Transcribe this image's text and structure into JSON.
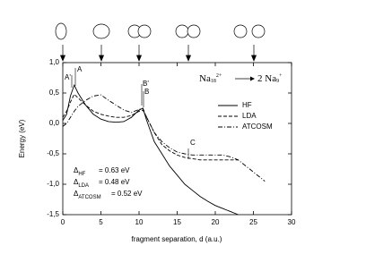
{
  "chart_data": {
    "type": "line",
    "x_label": "fragment separation, d (a.u.)",
    "y_label": "Energy (eV)",
    "x": [
      0,
      0.5,
      1,
      1.5,
      2,
      3,
      4,
      5,
      6,
      7,
      8,
      9,
      10,
      10.5,
      11,
      12,
      13,
      14,
      15,
      16,
      17,
      18,
      19,
      20,
      21,
      22,
      23,
      24,
      25,
      26,
      26.5
    ],
    "series": [
      {
        "name": "HF",
        "color": "#000000",
        "dash": "solid",
        "values": [
          0.05,
          0.15,
          0.45,
          0.63,
          0.5,
          0.3,
          0.15,
          0.07,
          0.03,
          0.02,
          0.03,
          0.1,
          0.22,
          0.25,
          0.05,
          -0.3,
          -0.5,
          -0.7,
          -0.85,
          -1.0,
          -1.1,
          -1.2,
          -1.28,
          -1.35,
          -1.4,
          -1.45,
          -1.5,
          null,
          null,
          null,
          null
        ]
      },
      {
        "name": "LDA",
        "color": "#000000",
        "dash": "dashed",
        "values": [
          0.1,
          0.2,
          0.35,
          0.48,
          0.42,
          0.3,
          0.2,
          0.15,
          0.12,
          0.1,
          0.1,
          0.13,
          0.2,
          0.22,
          0.1,
          -0.15,
          -0.35,
          -0.45,
          -0.52,
          -0.56,
          -0.58,
          -0.6,
          -0.6,
          -0.6,
          -0.6,
          -0.6,
          -0.6,
          null,
          null,
          null,
          null
        ]
      },
      {
        "name": "ATCOSM",
        "color": "#000000",
        "dash": "dashdot",
        "values": [
          -0.05,
          0,
          0.1,
          0.2,
          0.28,
          0.38,
          0.45,
          0.47,
          0.38,
          0.3,
          0.22,
          0.18,
          0.23,
          0.25,
          0.1,
          -0.15,
          -0.3,
          -0.4,
          -0.47,
          -0.5,
          -0.52,
          -0.52,
          -0.52,
          -0.52,
          -0.52,
          -0.55,
          -0.6,
          -0.7,
          -0.8,
          -0.9,
          -0.95
        ]
      }
    ],
    "xlim": [
      0,
      30
    ],
    "xticks": [
      0,
      5,
      10,
      15,
      20,
      25,
      30
    ],
    "ylim": [
      -1.5,
      1.0
    ],
    "yticks": [
      {
        "value": -1.5,
        "label": "-1,5"
      },
      {
        "value": -1.0,
        "label": "-1,0"
      },
      {
        "value": -0.5,
        "label": "-0,5"
      },
      {
        "value": 0.0,
        "label": "0,0"
      },
      {
        "value": 0.5,
        "label": "0,5"
      },
      {
        "value": 1.0,
        "label": "1,0"
      }
    ],
    "legend": "right",
    "annotations": [
      "A'",
      "A",
      "B'",
      "B",
      "C"
    ],
    "reaction": {
      "left": "Na",
      "left_sub": "18",
      "left_sup": "2+",
      "right": "2 Na",
      "right_sub": "9",
      "right_sup": "+"
    },
    "deltas": [
      {
        "symbol": "Δ",
        "sub": "HF",
        "text": "= 0.63 eV"
      },
      {
        "symbol": "Δ",
        "sub": "LDA",
        "text": "= 0.48 eV"
      },
      {
        "symbol": "Δ",
        "sub": "ATCOSM",
        "text": "= 0.52 eV"
      }
    ]
  }
}
